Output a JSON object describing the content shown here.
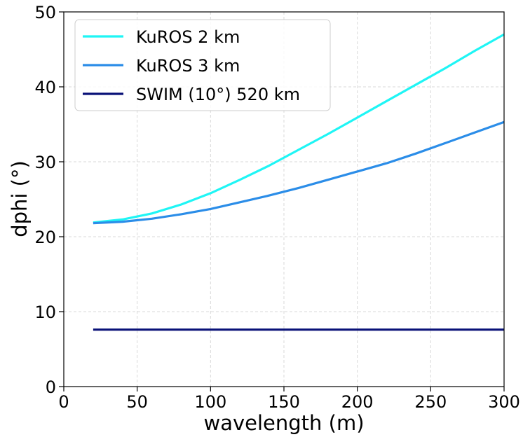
{
  "chart_data": {
    "type": "line",
    "title": "",
    "xlabel": "wavelength (m)",
    "ylabel": "dphi (°)",
    "xlim": [
      0,
      300
    ],
    "ylim": [
      0,
      50
    ],
    "xticks": [
      0,
      50,
      100,
      150,
      200,
      250,
      300
    ],
    "yticks": [
      0,
      10,
      20,
      30,
      40,
      50
    ],
    "grid": true,
    "legend_position": "top-left",
    "x": [
      20,
      40,
      60,
      80,
      100,
      120,
      140,
      160,
      180,
      200,
      220,
      240,
      260,
      280,
      300
    ],
    "series": [
      {
        "name": "KuROS 2 km",
        "color": "#1ff5f5",
        "values": [
          21.9,
          22.3,
          23.1,
          24.3,
          25.8,
          27.6,
          29.5,
          31.6,
          33.7,
          35.9,
          38.1,
          40.3,
          42.5,
          44.8,
          47.0
        ]
      },
      {
        "name": "KuROS 3 km",
        "color": "#2b8de8",
        "values": [
          21.8,
          22.0,
          22.4,
          23.0,
          23.7,
          24.6,
          25.5,
          26.5,
          27.6,
          28.7,
          29.8,
          31.1,
          32.5,
          33.9,
          35.3
        ]
      },
      {
        "name": "SWIM (10°) 520 km",
        "color": "#0a1278",
        "values": [
          7.6,
          7.6,
          7.6,
          7.6,
          7.6,
          7.6,
          7.6,
          7.6,
          7.6,
          7.6,
          7.6,
          7.6,
          7.6,
          7.6,
          7.6
        ]
      }
    ]
  }
}
